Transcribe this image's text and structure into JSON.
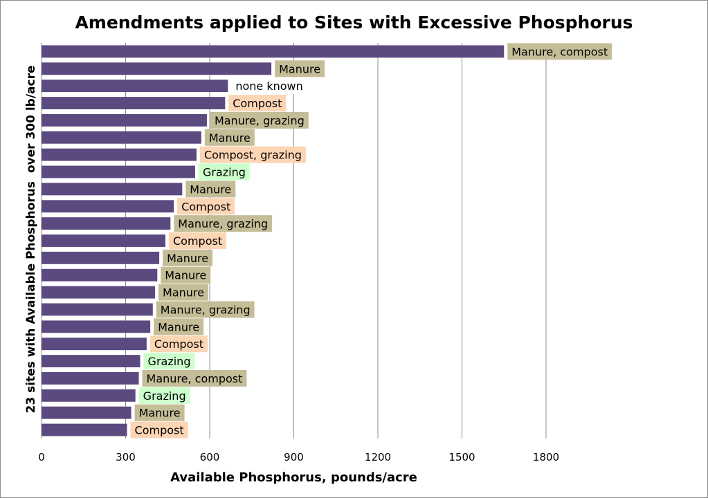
{
  "chart_data": {
    "type": "bar",
    "orientation": "horizontal",
    "title": "Amendments applied to Sites with Excessive Phosphorus",
    "xlabel": "Available Phosphorus,  pounds/acre",
    "ylabel": "23 sites with Available Phosphorus  over 300 lb/acre",
    "xlim": [
      0,
      1800
    ],
    "xticks": [
      "0",
      "300",
      "600",
      "900",
      "1200",
      "1500",
      "1800"
    ],
    "grid": "vertical",
    "bar_color": "#5b4a7f",
    "label_colors": {
      "manure": "#c4bd97",
      "compost": "#fcd5b5",
      "grazing": "#ccffcc",
      "none": "#ffffff"
    },
    "bars": [
      {
        "value": 1650,
        "label": "Manure, compost",
        "kind": "manure"
      },
      {
        "value": 820,
        "label": "Manure",
        "kind": "manure"
      },
      {
        "value": 665,
        "label": "none known",
        "kind": "none"
      },
      {
        "value": 655,
        "label": "Compost",
        "kind": "compost"
      },
      {
        "value": 590,
        "label": "Manure, grazing",
        "kind": "manure"
      },
      {
        "value": 570,
        "label": "Manure",
        "kind": "manure"
      },
      {
        "value": 553,
        "label": "Compost, grazing",
        "kind": "compost"
      },
      {
        "value": 548,
        "label": "Grazing",
        "kind": "grazing"
      },
      {
        "value": 502,
        "label": "Manure",
        "kind": "manure"
      },
      {
        "value": 472,
        "label": "Compost",
        "kind": "compost"
      },
      {
        "value": 460,
        "label": "Manure, grazing",
        "kind": "manure"
      },
      {
        "value": 442,
        "label": "Compost",
        "kind": "compost"
      },
      {
        "value": 420,
        "label": "Manure",
        "kind": "manure"
      },
      {
        "value": 413,
        "label": "Manure",
        "kind": "manure"
      },
      {
        "value": 405,
        "label": "Manure",
        "kind": "manure"
      },
      {
        "value": 397,
        "label": "Manure, grazing",
        "kind": "manure"
      },
      {
        "value": 388,
        "label": "Manure",
        "kind": "manure"
      },
      {
        "value": 375,
        "label": "Compost",
        "kind": "compost"
      },
      {
        "value": 352,
        "label": "Grazing",
        "kind": "grazing"
      },
      {
        "value": 347,
        "label": "Manure, compost",
        "kind": "manure"
      },
      {
        "value": 335,
        "label": "Grazing",
        "kind": "grazing"
      },
      {
        "value": 320,
        "label": "Manure",
        "kind": "manure"
      },
      {
        "value": 305,
        "label": "Compost",
        "kind": "compost"
      }
    ]
  }
}
